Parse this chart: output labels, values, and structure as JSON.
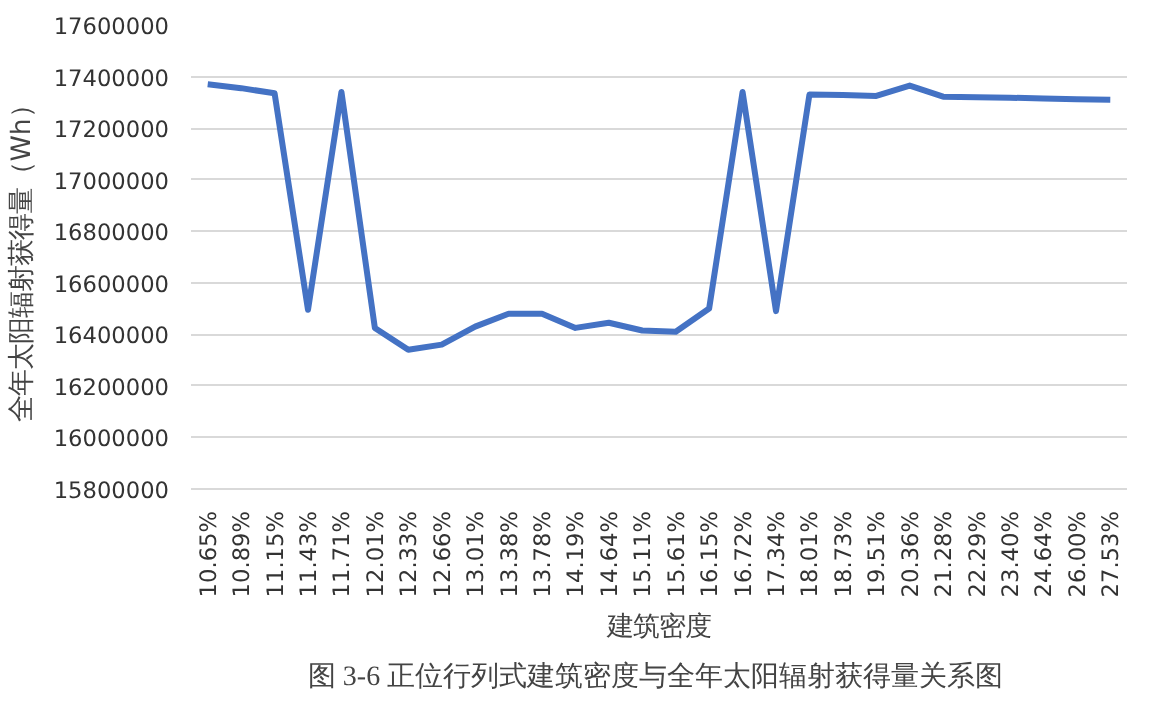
{
  "chart_data": {
    "type": "line",
    "xlabel": "建筑密度",
    "ylabel": "全年太阳辐射获得量（Wh）",
    "categories": [
      "10.65%",
      "10.89%",
      "11.15%",
      "11.43%",
      "11.71%",
      "12.01%",
      "12.33%",
      "12.66%",
      "13.01%",
      "13.38%",
      "13.78%",
      "14.19%",
      "14.64%",
      "15.11%",
      "15.61%",
      "16.15%",
      "16.72%",
      "17.34%",
      "18.01%",
      "18.73%",
      "19.51%",
      "20.36%",
      "21.28%",
      "22.29%",
      "23.40%",
      "24.64%",
      "26.00%",
      "27.53%"
    ],
    "series": [
      {
        "color": "#4472c4",
        "values": [
          17370000,
          17355000,
          17335000,
          16495000,
          17340000,
          16425000,
          16340000,
          16360000,
          16430000,
          16480000,
          16480000,
          16425000,
          16445000,
          16415000,
          16410000,
          16500000,
          17340000,
          16490000,
          17330000,
          17328000,
          17325000,
          17365000,
          17322000,
          17320000,
          17318000,
          17315000,
          17312000,
          17310000
        ]
      }
    ],
    "ylim": [
      15800000,
      17600000
    ],
    "yticks": [
      15800000,
      16000000,
      16200000,
      16400000,
      16600000,
      16800000,
      17000000,
      17200000,
      17400000,
      17600000
    ],
    "grid": "y",
    "marker": "none",
    "line_style": "solid",
    "annotations": [
      "图 3-6  正位行列式建筑密度与全年太阳辐射获得量关系图"
    ]
  }
}
